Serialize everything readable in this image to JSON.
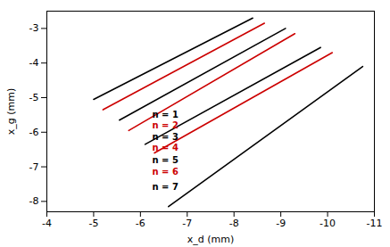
{
  "chart_data": {
    "type": "line",
    "xlabel": "x_d (mm)",
    "ylabel": "x_g (mm)",
    "xlim": [
      -4,
      -11
    ],
    "ylim": [
      -8.3,
      -2.5
    ],
    "xticks": [
      -4,
      -5,
      -6,
      -7,
      -8,
      -9,
      -10,
      -11
    ],
    "yticks": [
      -3,
      -4,
      -5,
      -6,
      -7,
      -8
    ],
    "background_color": "#ffffff",
    "series": [
      {
        "color": "#000000",
        "x": [
          -5.0,
          -8.4
        ],
        "values": [
          -5.05,
          -2.7
        ]
      },
      {
        "color": "#cc0000",
        "x": [
          -5.2,
          -8.65
        ],
        "values": [
          -5.35,
          -2.85
        ]
      },
      {
        "color": "#000000",
        "x": [
          -5.55,
          -9.1
        ],
        "values": [
          -5.65,
          -3.0
        ]
      },
      {
        "color": "#cc0000",
        "x": [
          -5.75,
          -9.3
        ],
        "values": [
          -5.95,
          -3.15
        ]
      },
      {
        "color": "#000000",
        "x": [
          -6.1,
          -9.85
        ],
        "values": [
          -6.35,
          -3.55
        ]
      },
      {
        "color": "#cc0000",
        "x": [
          -6.3,
          -10.1
        ],
        "values": [
          -6.6,
          -3.7
        ]
      },
      {
        "color": "#000000",
        "x": [
          -6.6,
          -10.75
        ],
        "values": [
          -8.15,
          -4.1
        ]
      }
    ],
    "annotations": [
      {
        "color": "#000000",
        "x": -6.25,
        "y": -5.5,
        "text": "n = 1"
      },
      {
        "color": "#cc0000",
        "x": -6.25,
        "y": -5.82,
        "text": "n = 2"
      },
      {
        "color": "#000000",
        "x": -6.25,
        "y": -6.14,
        "text": "n = 3"
      },
      {
        "color": "#cc0000",
        "x": -6.25,
        "y": -6.46,
        "text": "n = 4"
      },
      {
        "color": "#000000",
        "x": -6.25,
        "y": -6.82,
        "text": "n = 5"
      },
      {
        "color": "#cc0000",
        "x": -6.25,
        "y": -7.15,
        "text": "n = 6"
      },
      {
        "color": "#000000",
        "x": -6.25,
        "y": -7.58,
        "text": "n = 7"
      }
    ]
  }
}
